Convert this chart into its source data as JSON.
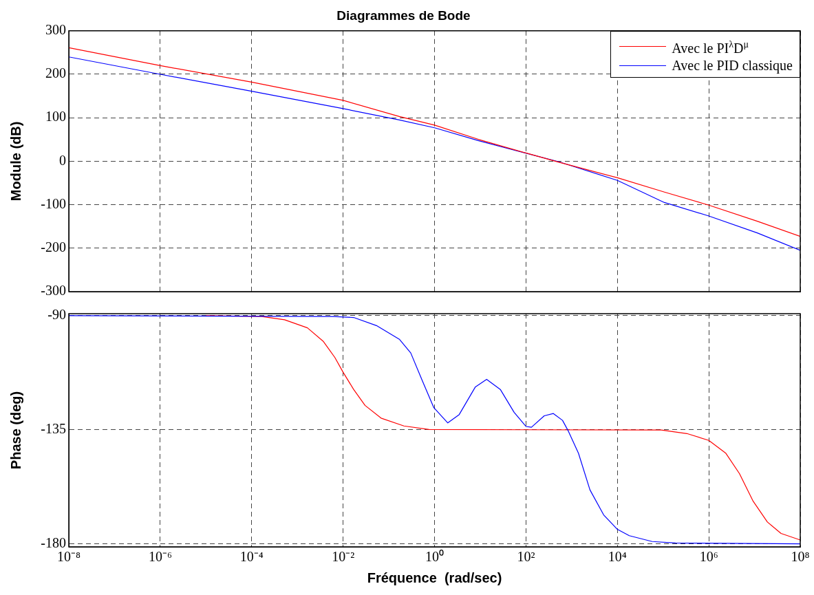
{
  "chart_data": [
    {
      "type": "line",
      "title": "Diagrammes de Bode",
      "ylabel": "Module (dB)",
      "log": "x",
      "grid": true,
      "legend": "top right",
      "tick_labels": "y",
      "xlim": [
        1e-08,
        100000000.0
      ],
      "xticks": [
        1e-08,
        1e-06,
        0.0001,
        0.01,
        1,
        100,
        10000,
        1000000,
        100000000
      ],
      "ylim": [
        -300,
        300
      ],
      "yticks": [
        -300,
        -200,
        -100,
        0,
        100,
        200,
        300
      ],
      "series": [
        {
          "name": "Avec le PI$^{λ}$D$^{μ}$",
          "color": "#ff0000",
          "x": [
            1e-08,
            1e-06,
            0.0001,
            0.01,
            0.17,
            1,
            9.3,
            100,
            513,
            10000,
            107000,
            1000000,
            11500000,
            100000000
          ],
          "values": [
            261,
            220,
            182,
            140,
            103,
            83,
            50,
            19,
            -2,
            -38,
            -71,
            -101,
            -138,
            -173
          ]
        },
        {
          "name": "Avec le PID classique",
          "color": "#0000ff",
          "x": [
            1e-08,
            1e-06,
            0.0001,
            0.01,
            0.17,
            1,
            9.3,
            513,
            10000,
            107000,
            1000000,
            11500000,
            100000000
          ],
          "values": [
            240,
            200,
            161,
            121,
            95,
            77,
            47,
            -1,
            -44,
            -95,
            -126,
            -165,
            -205
          ]
        }
      ]
    },
    {
      "type": "line",
      "xlabel": "Fréquence  (rad/sec)",
      "ylabel": "Phase (deg)",
      "log": "x",
      "grid": true,
      "xlim": [
        1e-08,
        100000000.0
      ],
      "xticks": [
        {
          "value": 1e-08,
          "label": "10⁻⁸"
        },
        {
          "value": 1e-06,
          "label": "10⁻⁶"
        },
        {
          "value": 0.0001,
          "label": "10⁻⁴"
        },
        {
          "value": 0.01,
          "label": "10⁻²"
        },
        {
          "value": 1,
          "label": "10⁰"
        },
        {
          "value": 100,
          "label": "10²"
        },
        {
          "value": 10000,
          "label": "10⁴"
        },
        {
          "value": 1000000,
          "label": "10⁶"
        },
        {
          "value": 100000000,
          "label": "10⁸"
        }
      ],
      "ylim": [
        -181.2,
        -89.2
      ],
      "yticks": [
        -180,
        -135,
        -90
      ],
      "series": [
        {
          "color": "#0000ff",
          "x": [
            1e-08,
            0.00589,
            0.017,
            0.0537,
            0.17,
            0.302,
            0.537,
            0.966,
            1.95,
            3.47,
            7.76,
            13.8,
            27.5,
            55,
            100,
            132,
            251,
            398,
            631,
            832,
            1410,
            2510,
            5010,
            10000,
            18200,
            57500,
            186000,
            100000000
          ],
          "values": [
            -90,
            -90.3,
            -90.7,
            -93.9,
            -99.3,
            -104.7,
            -115.5,
            -126.3,
            -132.3,
            -129,
            -118.2,
            -115.1,
            -119.1,
            -128.1,
            -133.7,
            -134,
            -129.5,
            -128.6,
            -131.3,
            -135.3,
            -144.3,
            -158.7,
            -168.6,
            -174.3,
            -176.8,
            -179.1,
            -179.7,
            -180
          ]
        },
        {
          "color": "#ff0000",
          "x": [
            1e-05,
            0.000166,
            0.000525,
            0.00166,
            0.00372,
            0.00661,
            0.01,
            0.017,
            0.0302,
            0.0676,
            0.214,
            0.759,
            100,
            91200,
            331000,
            1000000,
            2340000,
            4680000,
            9330000,
            19100000,
            38000000,
            100000000
          ],
          "values": [
            -90,
            -90.3,
            -91.6,
            -94.8,
            -100.2,
            -106.5,
            -112.3,
            -119.1,
            -125.4,
            -130.4,
            -133.5,
            -134.9,
            -135,
            -135.1,
            -136.5,
            -139.2,
            -144.2,
            -152.3,
            -163.2,
            -171.4,
            -175.9,
            -178.5
          ]
        }
      ]
    }
  ]
}
